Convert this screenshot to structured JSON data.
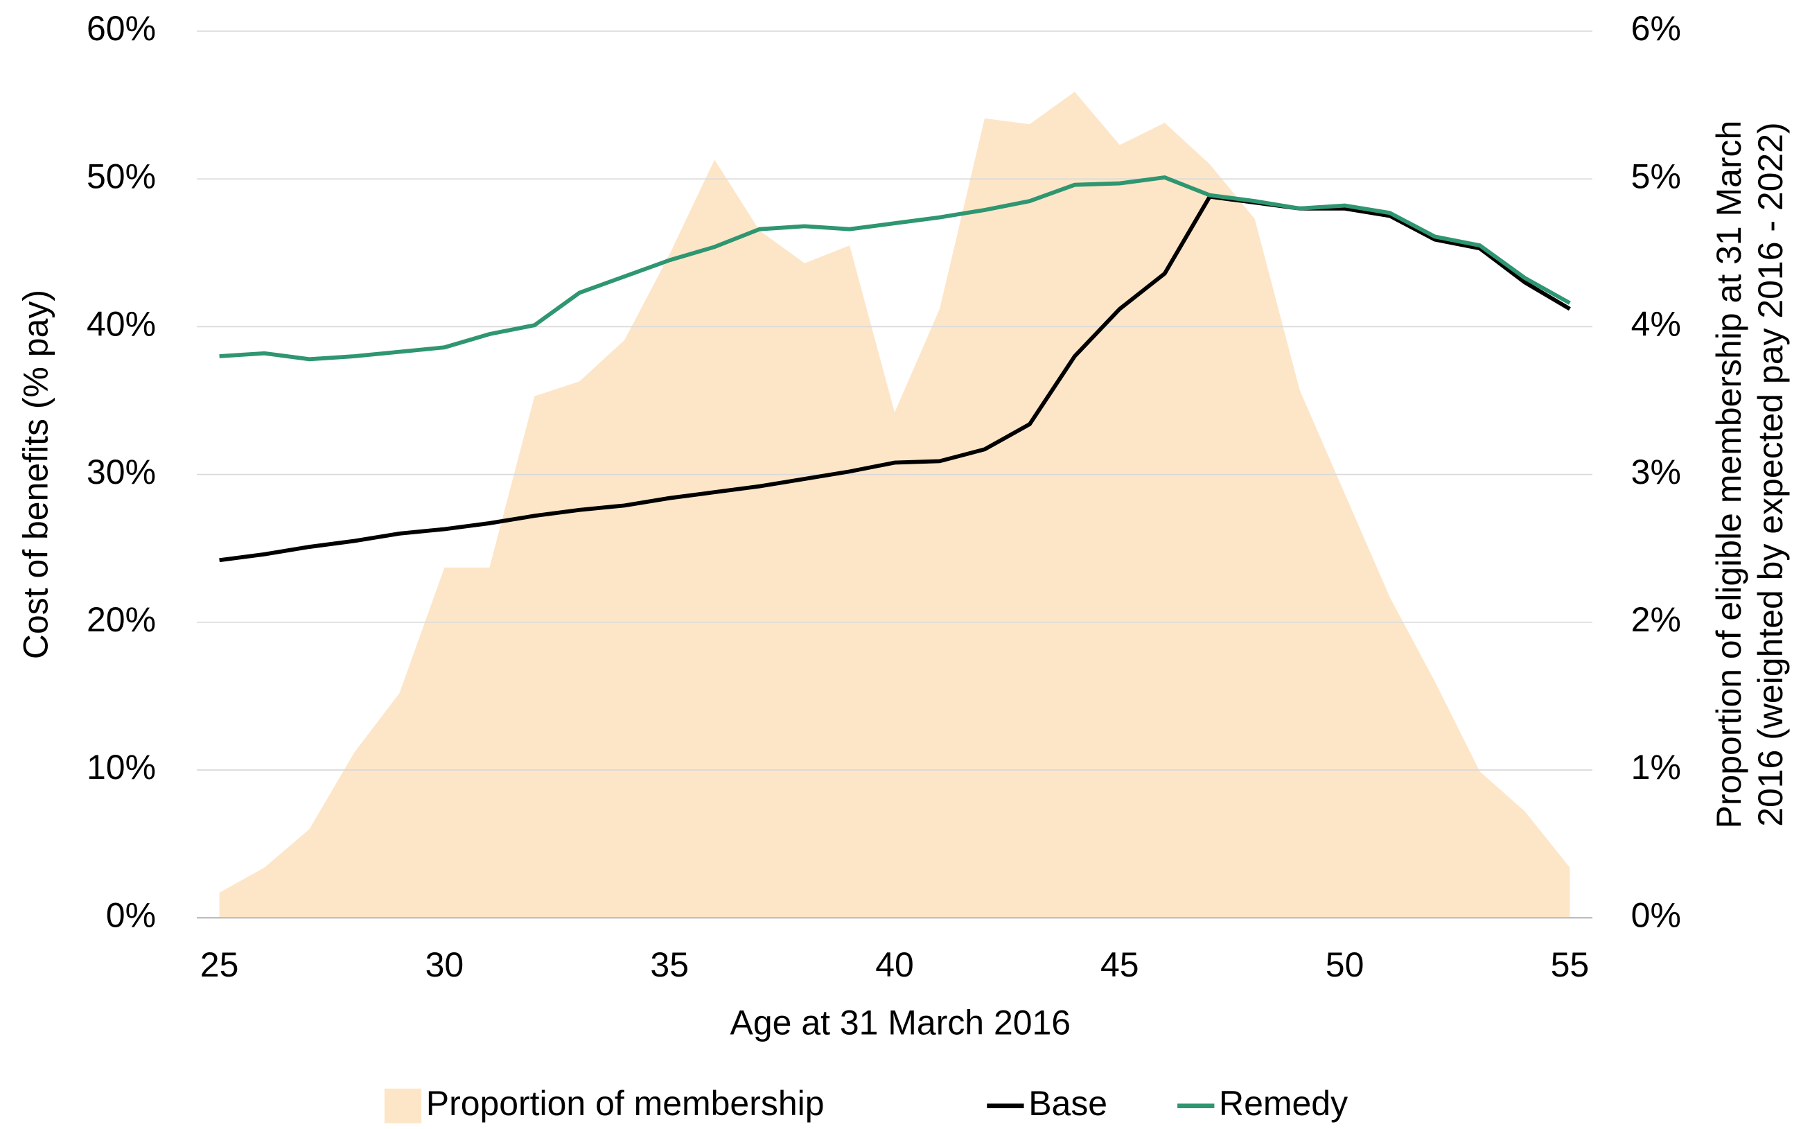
{
  "chart_data": {
    "type": "line",
    "xlabel": "Age at 31 March 2016",
    "ylabel": "Cost of benefits (% pay)",
    "y2label": [
      "Proportion of eligible membership at 31 March",
      "2016 (weighted by expected pay 2016 - 2022)"
    ],
    "x": [
      25,
      26,
      27,
      28,
      29,
      30,
      31,
      32,
      33,
      34,
      35,
      36,
      37,
      38,
      39,
      40,
      41,
      42,
      43,
      44,
      45,
      46,
      47,
      48,
      49,
      50,
      51,
      52,
      53,
      54,
      55
    ],
    "xlim": [
      24.5,
      55.5
    ],
    "xticks": [
      25,
      30,
      35,
      40,
      45,
      50,
      55
    ],
    "ylim": [
      0,
      60
    ],
    "yticks": [
      {
        "value": 0,
        "label": "0%"
      },
      {
        "value": 10,
        "label": "10%"
      },
      {
        "value": 20,
        "label": "20%"
      },
      {
        "value": 30,
        "label": "30%"
      },
      {
        "value": 40,
        "label": "40%"
      },
      {
        "value": 50,
        "label": "50%"
      },
      {
        "value": 60,
        "label": "60%"
      }
    ],
    "y2lim": [
      0,
      6
    ],
    "y2ticks": [
      {
        "value": 0,
        "label": "0%"
      },
      {
        "value": 1,
        "label": "1%"
      },
      {
        "value": 2,
        "label": "2%"
      },
      {
        "value": 3,
        "label": "3%"
      },
      {
        "value": 4,
        "label": "4%"
      },
      {
        "value": 5,
        "label": "5%"
      },
      {
        "value": 6,
        "label": "6%"
      }
    ],
    "grid": true,
    "legend": "bottom",
    "series": [
      {
        "name": "Proportion of membership",
        "type": "area",
        "axis": "y2",
        "color": "#fde6c8",
        "values": [
          0.17,
          0.34,
          0.6,
          1.12,
          1.52,
          2.37,
          2.37,
          3.53,
          3.63,
          3.91,
          4.49,
          5.13,
          4.65,
          4.43,
          4.55,
          3.42,
          4.12,
          5.41,
          5.37,
          5.59,
          5.23,
          5.38,
          5.1,
          4.73,
          3.57,
          2.87,
          2.17,
          1.6,
          0.99,
          0.72,
          0.34
        ]
      },
      {
        "name": "Base",
        "color": "#000000",
        "values": [
          24.2,
          24.6,
          25.1,
          25.5,
          26.0,
          26.3,
          26.7,
          27.2,
          27.6,
          27.9,
          28.4,
          28.8,
          29.2,
          29.7,
          30.2,
          30.8,
          30.9,
          31.7,
          33.4,
          38.0,
          41.2,
          43.6,
          48.8,
          48.4,
          48.0,
          48.0,
          47.5,
          45.9,
          45.3,
          43.0,
          41.2
        ]
      },
      {
        "name": "Remedy",
        "color": "#2e9670",
        "values": [
          38.0,
          38.2,
          37.8,
          38.0,
          38.3,
          38.6,
          39.5,
          40.1,
          42.3,
          43.4,
          44.5,
          45.4,
          46.6,
          46.8,
          46.6,
          47.0,
          47.4,
          47.9,
          48.5,
          49.6,
          49.7,
          50.1,
          48.9,
          48.5,
          48.0,
          48.2,
          47.7,
          46.1,
          45.5,
          43.3,
          41.6
        ]
      }
    ]
  }
}
